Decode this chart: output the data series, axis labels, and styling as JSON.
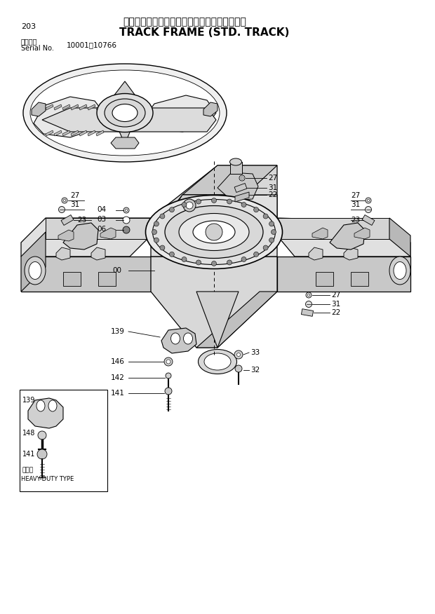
{
  "bg_color": "#ffffff",
  "title_ja": "トラックフレーム　（スタンダードトラック）",
  "title_en": "TRACK FRAME (STD. TRACK)",
  "page_num": "203",
  "serial_label1": "適用号機",
  "serial_label2": "Serial No.",
  "serial_range": "10001～10766",
  "lw": 0.8,
  "fc": "white",
  "ec": "black"
}
